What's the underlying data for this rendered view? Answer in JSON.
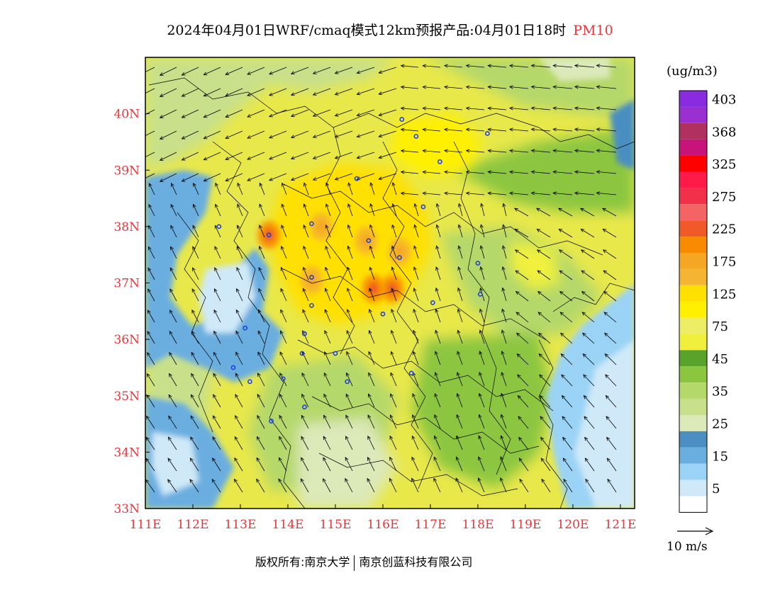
{
  "title": {
    "text": "2024年04月01日WRF/cmaq模式12km预报产品:04月01日18时",
    "pollutant": "PM10"
  },
  "unit": "(ug/m3)",
  "credit": {
    "owner": "版权所有:南京大学",
    "partner": "南京创蓝科技有限公司"
  },
  "wind_reference": {
    "label": "10  m/s"
  },
  "colors": {
    "axis_label": "#e8353a",
    "fill_base": "#e8e84a"
  },
  "map": {
    "lon_range": [
      111,
      121.3
    ],
    "lat_range": [
      33,
      41
    ],
    "x_ticks": [
      {
        "lon": 111,
        "label": "111E"
      },
      {
        "lon": 112,
        "label": "112E"
      },
      {
        "lon": 113,
        "label": "113E"
      },
      {
        "lon": 114,
        "label": "114E"
      },
      {
        "lon": 115,
        "label": "115E"
      },
      {
        "lon": 116,
        "label": "116E"
      },
      {
        "lon": 117,
        "label": "117E"
      },
      {
        "lon": 118,
        "label": "118E"
      },
      {
        "lon": 119,
        "label": "119E"
      },
      {
        "lon": 120,
        "label": "120E"
      },
      {
        "lon": 121,
        "label": "121E"
      }
    ],
    "y_ticks": [
      {
        "lat": 33,
        "label": "33N"
      },
      {
        "lat": 34,
        "label": "34N"
      },
      {
        "lat": 35,
        "label": "35N"
      },
      {
        "lat": 36,
        "label": "36N"
      },
      {
        "lat": 37,
        "label": "37N"
      },
      {
        "lat": 38,
        "label": "38N"
      },
      {
        "lat": 39,
        "label": "39N"
      },
      {
        "lat": 40,
        "label": "40N"
      }
    ],
    "city_markers": [
      {
        "lon": 116.4,
        "lat": 39.9
      },
      {
        "lon": 116.7,
        "lat": 39.6
      },
      {
        "lon": 118.2,
        "lat": 39.65
      },
      {
        "lon": 117.2,
        "lat": 39.15
      },
      {
        "lon": 115.45,
        "lat": 38.85
      },
      {
        "lon": 116.85,
        "lat": 38.35
      },
      {
        "lon": 114.5,
        "lat": 38.05
      },
      {
        "lon": 113.6,
        "lat": 37.85
      },
      {
        "lon": 112.55,
        "lat": 38.0
      },
      {
        "lon": 115.7,
        "lat": 37.75
      },
      {
        "lon": 116.35,
        "lat": 37.45
      },
      {
        "lon": 114.5,
        "lat": 37.1
      },
      {
        "lon": 118.0,
        "lat": 37.35
      },
      {
        "lon": 114.5,
        "lat": 36.6
      },
      {
        "lon": 116.0,
        "lat": 36.45
      },
      {
        "lon": 117.05,
        "lat": 36.65
      },
      {
        "lon": 118.05,
        "lat": 36.8
      },
      {
        "lon": 114.35,
        "lat": 36.1
      },
      {
        "lon": 113.1,
        "lat": 36.2
      },
      {
        "lon": 114.3,
        "lat": 35.75
      },
      {
        "lon": 115.0,
        "lat": 35.75
      },
      {
        "lon": 112.85,
        "lat": 35.5
      },
      {
        "lon": 116.6,
        "lat": 35.4
      },
      {
        "lon": 113.2,
        "lat": 35.25
      },
      {
        "lon": 113.9,
        "lat": 35.3
      },
      {
        "lon": 115.25,
        "lat": 35.25
      },
      {
        "lon": 114.35,
        "lat": 34.8
      },
      {
        "lon": 113.65,
        "lat": 34.55
      }
    ],
    "hotspots": [
      {
        "lon": 114.7,
        "lat": 38.0,
        "value": 175
      },
      {
        "lon": 115.65,
        "lat": 37.75,
        "value": 175
      },
      {
        "lon": 114.5,
        "lat": 37.05,
        "value": 175
      },
      {
        "lon": 115.8,
        "lat": 36.9,
        "value": 225
      },
      {
        "lon": 116.2,
        "lat": 36.9,
        "value": 225
      },
      {
        "lon": 113.6,
        "lat": 37.85,
        "value": 225
      },
      {
        "lon": 116.35,
        "lat": 37.55,
        "value": 175
      }
    ]
  },
  "legend": {
    "bins": [
      {
        "label": "403",
        "color": "#8a2be2"
      },
      {
        "label": "",
        "color": "#9b30d0"
      },
      {
        "label": "368",
        "color": "#b03060"
      },
      {
        "label": "",
        "color": "#c8147a"
      },
      {
        "label": "325",
        "color": "#ff0000"
      },
      {
        "label": "",
        "color": "#ff1a4a"
      },
      {
        "label": "275",
        "color": "#f2304a"
      },
      {
        "label": "",
        "color": "#f46464"
      },
      {
        "label": "225",
        "color": "#f05a28"
      },
      {
        "label": "",
        "color": "#f98b00"
      },
      {
        "label": "175",
        "color": "#f5a623"
      },
      {
        "label": "",
        "color": "#f5b431"
      },
      {
        "label": "125",
        "color": "#ffe000"
      },
      {
        "label": "",
        "color": "#fff000"
      },
      {
        "label": "75",
        "color": "#eeee66"
      },
      {
        "label": "",
        "color": "#f0f03c"
      },
      {
        "label": "45",
        "color": "#5aa32a"
      },
      {
        "label": "",
        "color": "#8cc63f"
      },
      {
        "label": "35",
        "color": "#b5d86a"
      },
      {
        "label": "",
        "color": "#c8e08a"
      },
      {
        "label": "25",
        "color": "#dce9b9"
      },
      {
        "label": "",
        "color": "#4a8ec2"
      },
      {
        "label": "15",
        "color": "#6aaee0"
      },
      {
        "label": "",
        "color": "#9ad3f5"
      },
      {
        "label": "5",
        "color": "#cfe9f8"
      },
      {
        "label": "",
        "color": "#ffffff"
      }
    ]
  }
}
